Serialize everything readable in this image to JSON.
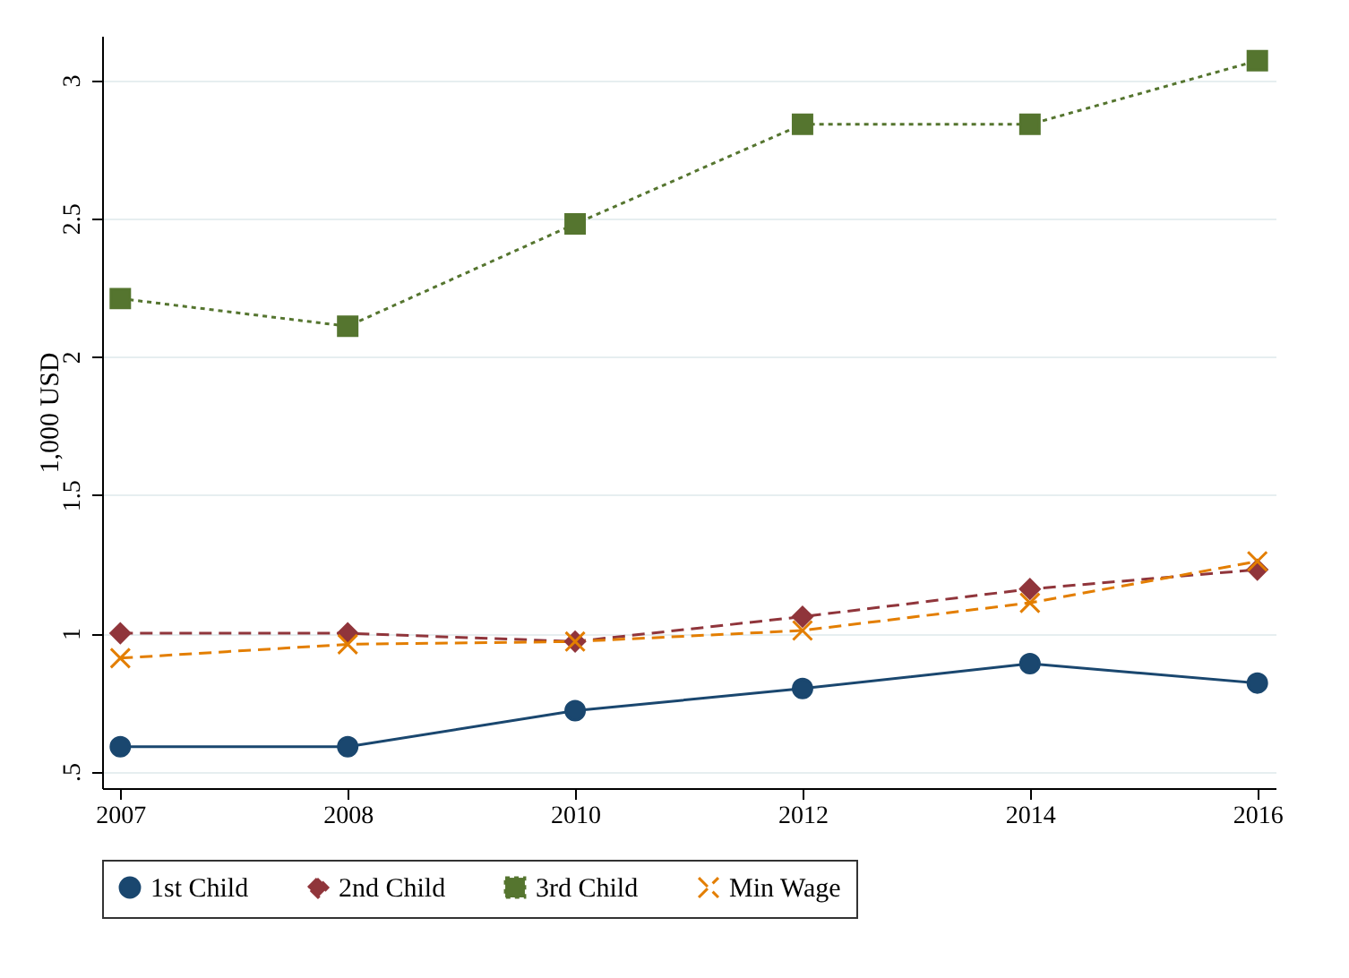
{
  "chart_data": {
    "type": "line",
    "ylabel": "1,000 USD",
    "categories": [
      "2007",
      "2008",
      "2010",
      "2012",
      "2014",
      "2016"
    ],
    "series": [
      {
        "name": "1st Child",
        "color": "#1a476f",
        "marker": "circle",
        "line_style": "solid",
        "values": [
          0.59,
          0.59,
          0.72,
          0.8,
          0.89,
          0.82
        ]
      },
      {
        "name": "2nd Child",
        "color": "#90353b",
        "marker": "diamond",
        "line_style": "dashed",
        "values": [
          1.0,
          1.0,
          0.97,
          1.06,
          1.16,
          1.23
        ]
      },
      {
        "name": "3rd Child",
        "color": "#55752f",
        "marker": "square",
        "line_style": "dotted",
        "values": [
          2.21,
          2.11,
          2.48,
          2.84,
          2.84,
          3.07
        ]
      },
      {
        "name": "Min Wage",
        "color": "#e37e00",
        "marker": "cross",
        "line_style": "dashed",
        "values": [
          0.91,
          0.96,
          0.97,
          1.01,
          1.11,
          1.26
        ]
      }
    ],
    "ylim": [
      0.44,
      3.16
    ],
    "yticks": [
      {
        "value": 0.5,
        "label": ".5"
      },
      1,
      1.5,
      2,
      2.5,
      3
    ],
    "grid": "y",
    "legend": "bottom"
  }
}
